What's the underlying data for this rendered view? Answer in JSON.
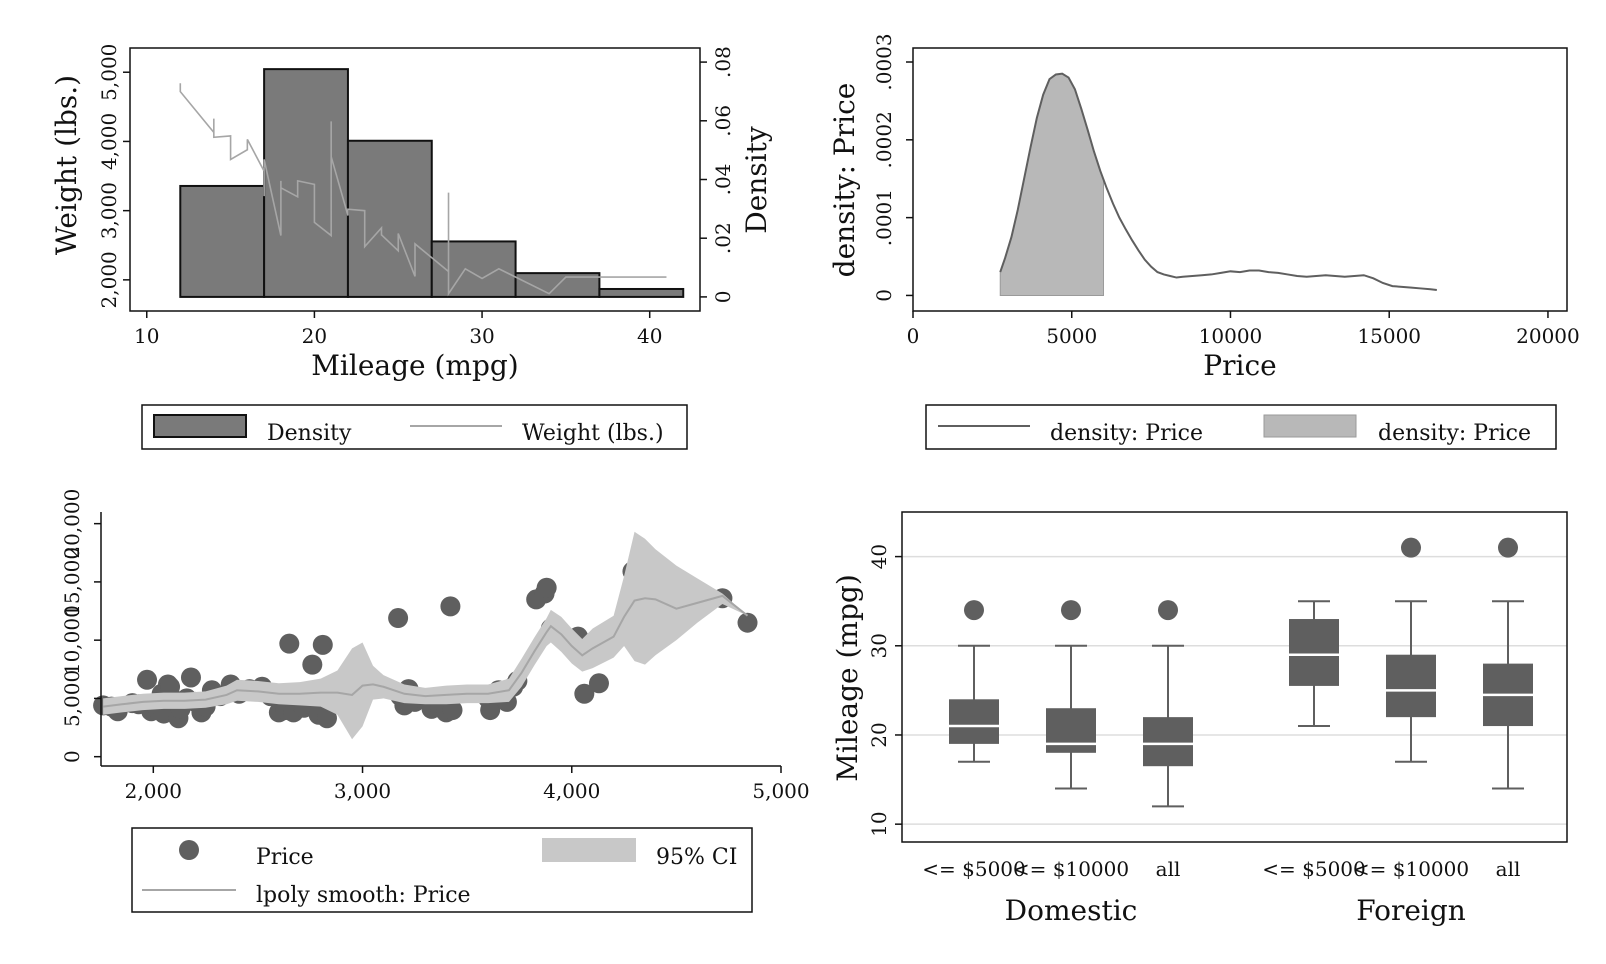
{
  "colors": {
    "bar_fill": "#7a7a7a",
    "dark": "#5f5f5f",
    "light_line": "#a6a6a6",
    "light_fill": "#b8b8b8",
    "ci_fill": "#c8c8c8",
    "grid": "#dddddd",
    "median": "#ffffff"
  },
  "chart_data": [
    {
      "type": "bar",
      "title": "",
      "xlabel": "Mileage (mpg)",
      "ylabel": "Weight (lbs.)",
      "y2label": "Density",
      "xlim": [
        9,
        43
      ],
      "ylim": [
        1550,
        5350
      ],
      "y2lim": [
        -0.0048,
        0.0848
      ],
      "xticks": [
        "10",
        "20",
        "30",
        "40"
      ],
      "yticks": [
        "2,000",
        "3,000",
        "4,000",
        "5,000"
      ],
      "y2ticks": [
        "0",
        ".02",
        ".04",
        ".06",
        ".08"
      ],
      "legend": {
        "position": "bottom",
        "labels": [
          "Density",
          "Weight (lbs.)"
        ]
      },
      "histogram": {
        "name": "Density",
        "bins": [
          [
            12,
            17,
            0.0378
          ],
          [
            17,
            22,
            0.0776
          ],
          [
            22,
            27,
            0.0532
          ],
          [
            27,
            32,
            0.0189
          ],
          [
            32,
            37,
            0.0081
          ],
          [
            37,
            42,
            0.0027
          ]
        ]
      },
      "series": [
        {
          "name": "Weight (lbs.)",
          "x": [
            12,
            12,
            14,
            14,
            14,
            15,
            15,
            16,
            16,
            17,
            17,
            17,
            18,
            18,
            18,
            19,
            19,
            20,
            20,
            21,
            21,
            21,
            22,
            22,
            23,
            23,
            24,
            24,
            25,
            25,
            26,
            26,
            28,
            28,
            28,
            29,
            30,
            31,
            34,
            35,
            41
          ],
          "y": [
            4840,
            4720,
            4130,
            4330,
            4060,
            4080,
            3740,
            3880,
            4030,
            3570,
            3210,
            3740,
            2640,
            3430,
            3330,
            3200,
            3430,
            3380,
            2830,
            2640,
            4290,
            3780,
            2930,
            3020,
            3000,
            2480,
            2750,
            2650,
            2420,
            2670,
            2050,
            2520,
            2120,
            3260,
            1800,
            2160,
            2020,
            2160,
            1800,
            2040,
            2040
          ]
        }
      ]
    },
    {
      "type": "area",
      "title": "",
      "xlabel": "Price",
      "ylabel": "density: Price",
      "xlim": [
        0,
        20600
      ],
      "ylim": [
        -2e-05,
        0.000318
      ],
      "xticks": [
        "0",
        "5000",
        "10000",
        "15000",
        "20000"
      ],
      "yticks": [
        "0",
        ".0001",
        ".0002",
        ".0003"
      ],
      "legend": {
        "position": "bottom",
        "labels": [
          "density: Price",
          "density: Price"
        ]
      },
      "series": [
        {
          "name": "density: Price",
          "kind": "line",
          "x": [
            2748,
            2900,
            3100,
            3300,
            3500,
            3700,
            3900,
            4100,
            4300,
            4500,
            4700,
            4900,
            5100,
            5300,
            5500,
            5700,
            5900,
            6100,
            6300,
            6500,
            6700,
            6900,
            7100,
            7300,
            7500,
            7700,
            7900,
            8100,
            8300,
            8500,
            8800,
            9100,
            9400,
            9700,
            10000,
            10300,
            10600,
            10900,
            11200,
            11500,
            11800,
            12100,
            12400,
            12700,
            13000,
            13300,
            13600,
            13900,
            14200,
            14500,
            14800,
            15100,
            15400,
            15700,
            16000,
            16300,
            16500
          ],
          "y": [
            3e-05,
            4.8e-05,
            7.5e-05,
            0.00011,
            0.00015,
            0.00019,
            0.000228,
            0.000258,
            0.000278,
            0.000284,
            0.000285,
            0.00028,
            0.000265,
            0.00024,
            0.000213,
            0.000185,
            0.00016,
            0.000138,
            0.000118,
            0.0001,
            8.5e-05,
            7.1e-05,
            5.8e-05,
            4.6e-05,
            3.7e-05,
            3e-05,
            2.7e-05,
            2.5e-05,
            2.3e-05,
            2.4e-05,
            2.5e-05,
            2.6e-05,
            2.7e-05,
            2.9e-05,
            3.1e-05,
            3e-05,
            3.2e-05,
            3.2e-05,
            3e-05,
            2.9e-05,
            2.7e-05,
            2.5e-05,
            2.4e-05,
            2.5e-05,
            2.6e-05,
            2.5e-05,
            2.4e-05,
            2.5e-05,
            2.6e-05,
            2.2e-05,
            1.6e-05,
            1.2e-05,
            1.1e-05,
            1e-05,
            9e-06,
            8e-06,
            7e-06
          ]
        },
        {
          "name": "density: Price",
          "kind": "area",
          "x_range": [
            2748,
            6000
          ]
        }
      ]
    },
    {
      "type": "scatter",
      "title": "",
      "xlabel": "",
      "ylabel": "",
      "xlim": [
        1750,
        5000
      ],
      "ylim": [
        -800,
        21000
      ],
      "xticks": [
        "2,000",
        "3,000",
        "4,000",
        "5,000"
      ],
      "yticks": [
        "0",
        "5,000",
        "10,000",
        "15,000",
        "20,000"
      ],
      "legend": {
        "position": "bottom",
        "labels": [
          "Price",
          "95% CI",
          "lpoly smooth: Price"
        ]
      },
      "series": [
        {
          "name": "Price",
          "kind": "scatter",
          "x": [
            1760,
            1800,
            1830,
            1900,
            1930,
            1970,
            1990,
            2020,
            2040,
            2050,
            2070,
            2080,
            2110,
            2120,
            2130,
            2160,
            2180,
            2200,
            2230,
            2250,
            2280,
            2320,
            2370,
            2410,
            2460,
            2520,
            2560,
            2600,
            2630,
            2650,
            2670,
            2690,
            2720,
            2750,
            2760,
            2790,
            2810,
            2830,
            3170,
            3180,
            3200,
            3220,
            3250,
            3280,
            3310,
            3330,
            3370,
            3400,
            3420,
            3430,
            3600,
            3610,
            3650,
            3690,
            3720,
            3740,
            3830,
            3870,
            3880,
            3900,
            4030,
            4060,
            4130,
            4290,
            4330,
            4720,
            4840
          ],
          "y": [
            4400,
            4300,
            3900,
            4600,
            4500,
            6600,
            3900,
            4100,
            5400,
            3700,
            6200,
            6000,
            4800,
            3300,
            4100,
            5000,
            6800,
            4700,
            3800,
            4300,
            5700,
            5200,
            6200,
            5400,
            5800,
            6000,
            5200,
            3800,
            4000,
            9700,
            3800,
            4700,
            4200,
            4500,
            7900,
            3600,
            9600,
            3300,
            11900,
            5200,
            4400,
            5800,
            4700,
            5000,
            5000,
            4100,
            4200,
            3800,
            12900,
            4000,
            5000,
            4000,
            5700,
            4700,
            6000,
            6500,
            13500,
            14000,
            14500,
            11000,
            10300,
            5400,
            6300,
            15900,
            13500,
            13600,
            11500
          ]
        },
        {
          "name": "lpoly smooth: Price",
          "kind": "line",
          "x": [
            1760,
            1850,
            1950,
            2050,
            2150,
            2250,
            2350,
            2400,
            2500,
            2600,
            2700,
            2800,
            2880,
            2950,
            3000,
            3050,
            3100,
            3200,
            3300,
            3400,
            3500,
            3600,
            3700,
            3760,
            3820,
            3880,
            3900,
            3950,
            4000,
            4050,
            4100,
            4200,
            4250,
            4300,
            4350,
            4400,
            4500,
            4600,
            4720,
            4840
          ],
          "y": [
            4300,
            4500,
            4700,
            4800,
            4800,
            4900,
            5300,
            5700,
            5600,
            5400,
            5400,
            5500,
            5500,
            5300,
            6100,
            6200,
            6000,
            5400,
            5200,
            5300,
            5400,
            5400,
            5700,
            7200,
            9000,
            10700,
            11200,
            10500,
            9500,
            8700,
            9300,
            10300,
            12000,
            13400,
            13600,
            13500,
            12700,
            13200,
            13800,
            12100
          ]
        },
        {
          "name": "95% CI",
          "kind": "band",
          "x": [
            1760,
            1850,
            1950,
            2050,
            2150,
            2250,
            2350,
            2400,
            2500,
            2600,
            2700,
            2800,
            2880,
            2950,
            3000,
            3050,
            3100,
            3200,
            3300,
            3400,
            3500,
            3600,
            3700,
            3760,
            3820,
            3880,
            3900,
            3950,
            4000,
            4050,
            4100,
            4200,
            4250,
            4300,
            4350,
            4400,
            4500,
            4600,
            4720,
            4840
          ],
          "lower": [
            3600,
            3800,
            4000,
            4100,
            4100,
            4200,
            4500,
            4800,
            4700,
            4500,
            4400,
            4300,
            3600,
            1500,
            2600,
            4900,
            5000,
            4600,
            4500,
            4500,
            4600,
            4600,
            4700,
            6000,
            7800,
            9500,
            9800,
            9000,
            8000,
            7300,
            7600,
            8500,
            9500,
            8200,
            7900,
            8700,
            10000,
            11500,
            13100,
            12100
          ],
          "upper": [
            5000,
            5200,
            5400,
            5500,
            5500,
            5600,
            6100,
            6600,
            6500,
            6300,
            6400,
            6700,
            7400,
            9300,
            9800,
            7800,
            7000,
            6200,
            5900,
            6100,
            6200,
            6200,
            6700,
            8400,
            10200,
            11900,
            12600,
            12000,
            11000,
            10100,
            11000,
            12100,
            15500,
            19300,
            18700,
            17800,
            16400,
            15300,
            14000,
            12100
          ]
        }
      ]
    },
    {
      "type": "box",
      "title": "",
      "xlabel": "",
      "ylabel": "Mileage (mpg)",
      "ylim": [
        8,
        45
      ],
      "yticks": [
        "10",
        "20",
        "30",
        "40"
      ],
      "groups": [
        {
          "label": "Domestic",
          "boxes": [
            {
              "label": "<= $5000",
              "whisker_low": 17,
              "q1": 19,
              "median": 21,
              "q3": 24,
              "whisker_high": 30,
              "outliers": [
                34
              ]
            },
            {
              "label": "<= $10000",
              "whisker_low": 14,
              "q1": 18,
              "median": 19,
              "q3": 23,
              "whisker_high": 30,
              "outliers": [
                34
              ]
            },
            {
              "label": "all",
              "whisker_low": 12,
              "q1": 16.5,
              "median": 19,
              "q3": 22,
              "whisker_high": 30,
              "outliers": [
                34
              ]
            }
          ]
        },
        {
          "label": "Foreign",
          "boxes": [
            {
              "label": "<= $5000",
              "whisker_low": 21,
              "q1": 25.5,
              "median": 29,
              "q3": 33,
              "whisker_high": 35,
              "outliers": []
            },
            {
              "label": "<= $10000",
              "whisker_low": 17,
              "q1": 22,
              "median": 25,
              "q3": 29,
              "whisker_high": 35,
              "outliers": [
                41
              ]
            },
            {
              "label": "all",
              "whisker_low": 14,
              "q1": 21,
              "median": 24.5,
              "q3": 28,
              "whisker_high": 35,
              "outliers": [
                41
              ]
            }
          ]
        }
      ]
    }
  ]
}
